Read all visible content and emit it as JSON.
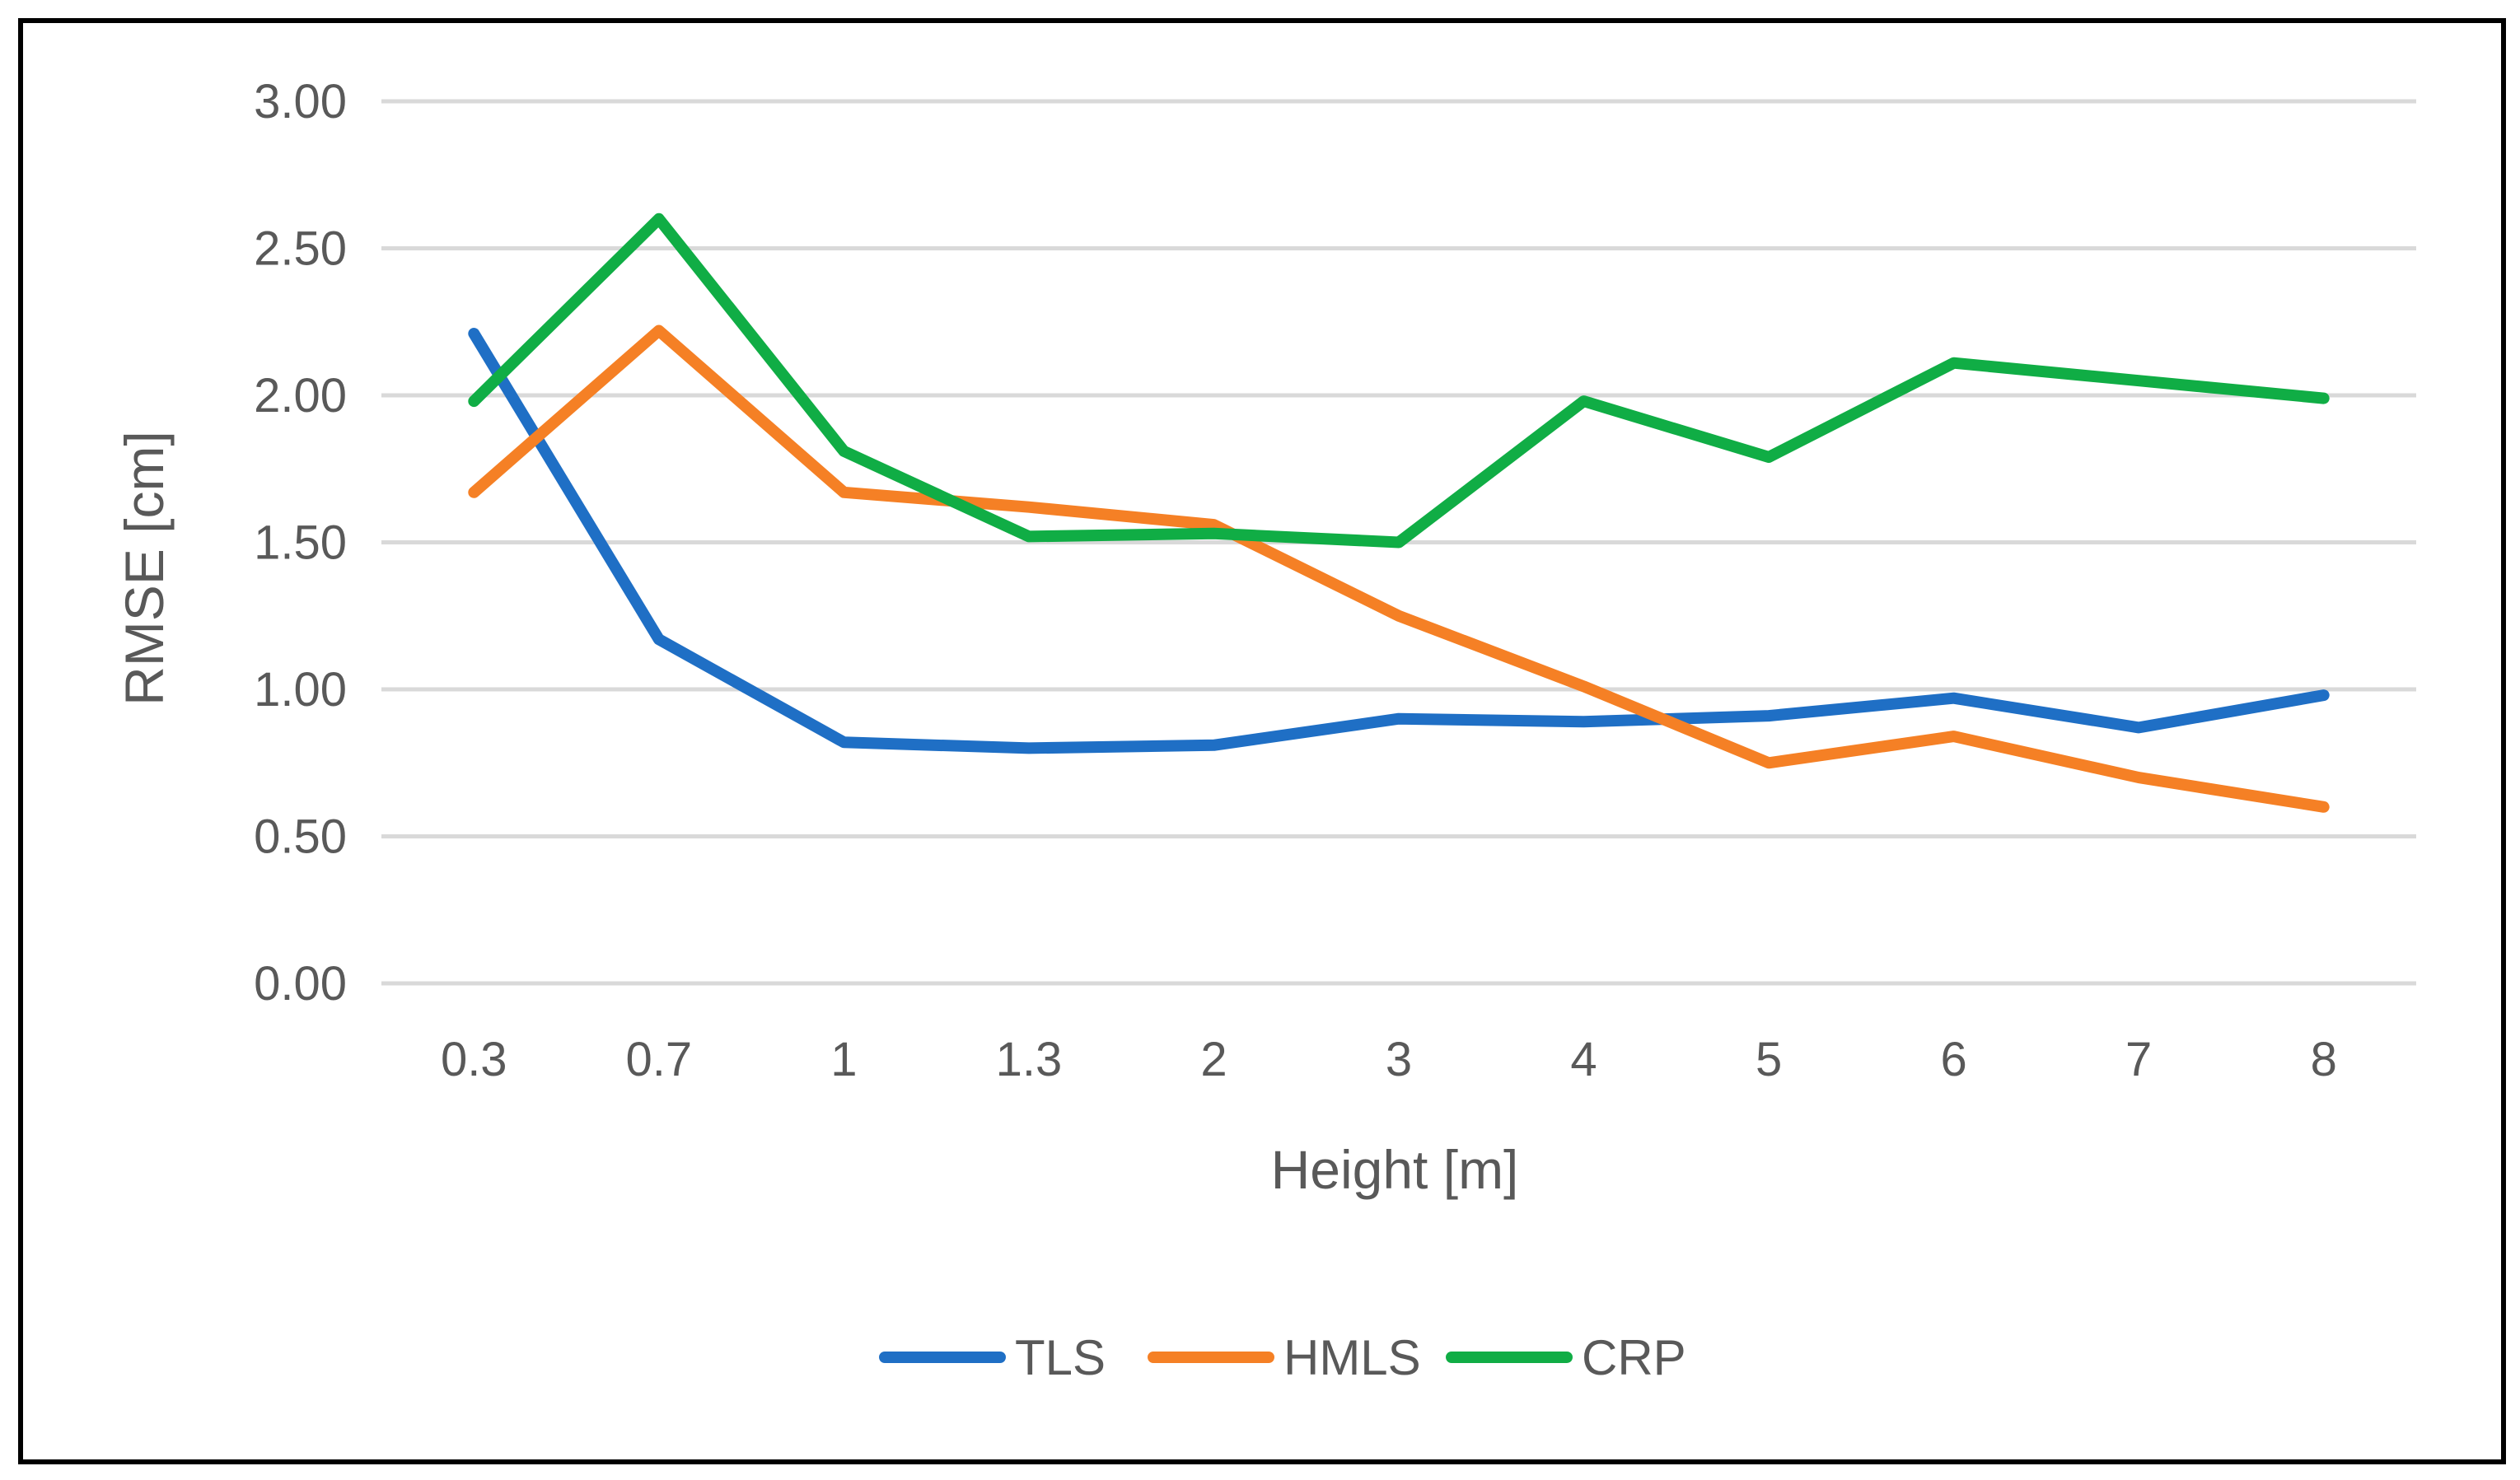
{
  "chart_data": {
    "type": "line",
    "title": "",
    "xlabel": "Height [m]",
    "ylabel": "RMSE [cm]",
    "categories": [
      "0.3",
      "0.7",
      "1",
      "1.3",
      "2",
      "3",
      "4",
      "5",
      "6",
      "7",
      "8"
    ],
    "ylim": [
      0,
      3
    ],
    "yticks": [
      "0.00",
      "0.50",
      "1.00",
      "1.50",
      "2.00",
      "2.50",
      "3.00"
    ],
    "ytick_values": [
      0,
      0.5,
      1,
      1.5,
      2,
      2.5,
      3
    ],
    "grid": true,
    "legend_position": "bottom-center",
    "series": [
      {
        "name": "TLS",
        "color": "#1f6fc5",
        "values": [
          2.21,
          1.17,
          0.82,
          0.8,
          0.81,
          0.9,
          0.89,
          0.91,
          0.97,
          0.87,
          0.98
        ]
      },
      {
        "name": "HMLS",
        "color": "#f58025",
        "values": [
          1.67,
          2.22,
          1.67,
          1.62,
          1.56,
          1.25,
          1.01,
          0.75,
          0.84,
          0.7,
          0.6
        ]
      },
      {
        "name": "CRP",
        "color": "#10ad45",
        "values": [
          1.98,
          2.6,
          1.81,
          1.52,
          1.53,
          1.5,
          1.98,
          1.79,
          2.11,
          2.05,
          1.99
        ]
      }
    ]
  }
}
